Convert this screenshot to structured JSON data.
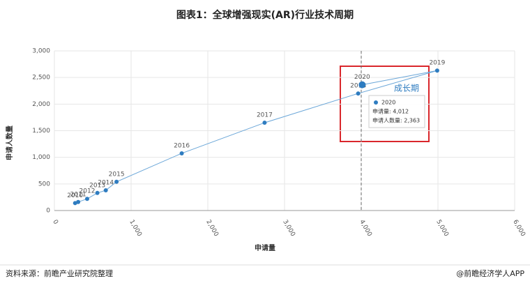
{
  "chart_data": {
    "type": "line",
    "title": "图表1：全球增强现实(AR)行业技术周期",
    "x_label": "申请量",
    "y_label": "申请人数量",
    "labels": [
      "2010",
      "2011",
      "2012",
      "2013",
      "2014",
      "2015",
      "2016",
      "2017",
      "2018",
      "2019",
      "2020"
    ],
    "x": [
      270,
      310,
      427,
      560,
      670,
      810,
      1660,
      2740,
      3960,
      4990,
      4012
    ],
    "series": [
      {
        "name": "申请人数量",
        "color": "#2e7cc0",
        "line_color": "#6aa6d8",
        "values": [
          140,
          160,
          220,
          330,
          380,
          540,
          1075,
          1650,
          2200,
          2630,
          2363
        ]
      }
    ],
    "xlim": [
      0,
      6000
    ],
    "xticks": [
      0,
      {
        "value": 1000,
        "label": "1,000"
      },
      {
        "value": 2000,
        "label": "2,000"
      },
      {
        "value": 3000,
        "label": "3,000"
      },
      {
        "value": 4000,
        "label": "4,000"
      },
      {
        "value": 5000,
        "label": "5,000"
      },
      {
        "value": 6000,
        "label": "6,000"
      }
    ],
    "ylim": [
      0,
      3000
    ],
    "yticks": [
      0,
      500,
      {
        "value": 1000,
        "label": "1,000"
      },
      {
        "value": 1500,
        "label": "1,500"
      },
      {
        "value": 2000,
        "label": "2,000"
      },
      {
        "value": 2500,
        "label": "2,500"
      },
      {
        "value": 3000,
        "label": "3,000"
      }
    ],
    "grid": true,
    "vline": 4000,
    "annotation": "成长期",
    "tooltip": {
      "title": "2020",
      "lines": [
        "申请量: 4,012",
        "申请人数量: 2,363"
      ]
    },
    "source": "资料来源：前瞻产业研究院整理",
    "brand": "@前瞻经济学人APP"
  }
}
